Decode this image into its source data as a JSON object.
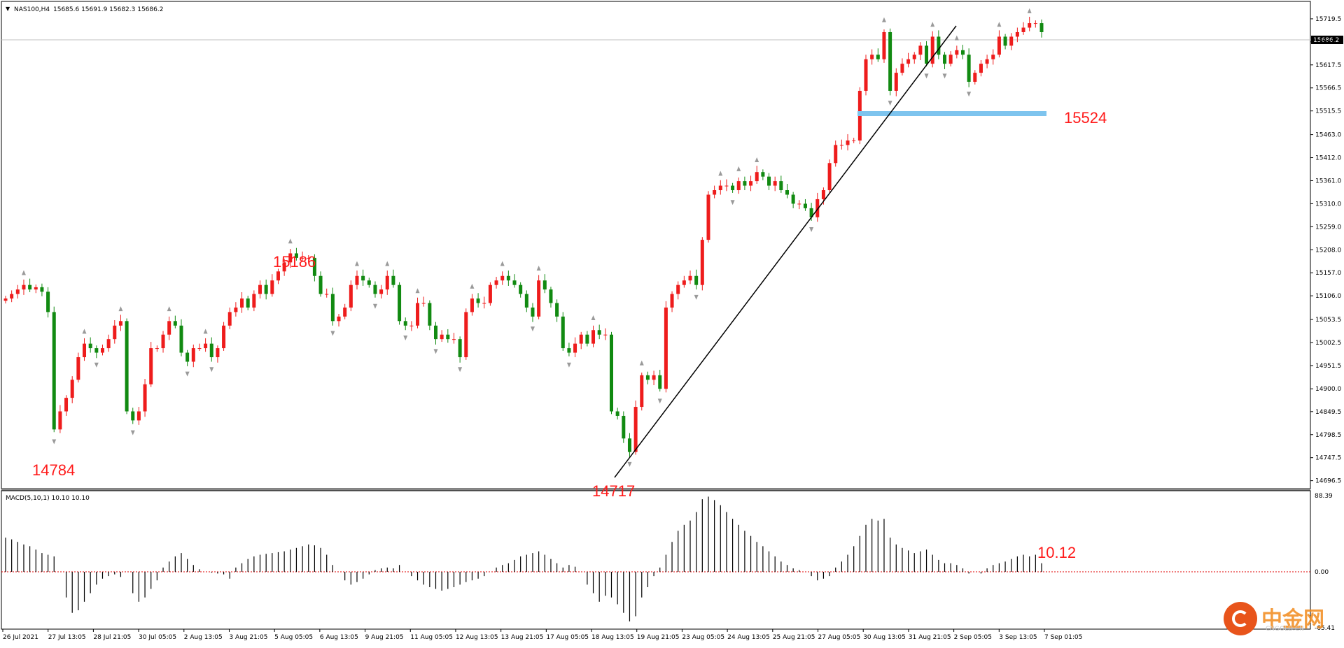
{
  "header": {
    "symbol": "NAS100,H4",
    "ohlc": "15685.6 15691.9 15682.3 15686.2"
  },
  "current_price_label": "15686.2",
  "annotations": {
    "low_left": "14784",
    "high_mid": "15186",
    "low_mid": "14717",
    "support": "15524",
    "macd_value": "10.12"
  },
  "macd": {
    "title": "MACD(5,10,1) 10.10 10.10",
    "max_label": "88.39",
    "zero_label": "0.00",
    "min_label": "-65.41"
  },
  "colors": {
    "bull": "#ee1c1c",
    "bear": "#118a11",
    "support_line": "#7ec4ee",
    "annotation": "#ff1a1a",
    "trendline": "#000000",
    "fractal": "#9a9a9a"
  },
  "chart_data": {
    "type": "candlestick",
    "title": "NAS100,H4",
    "timeframe": "H4",
    "price_axis": {
      "ticks": [
        "15719.5",
        "15668.5",
        "15617.5",
        "15566.5",
        "15515.5",
        "15463.0",
        "15412.0",
        "15361.0",
        "15310.0",
        "15259.0",
        "15208.0",
        "15157.0",
        "15106.0",
        "15053.5",
        "15002.5",
        "14951.5",
        "14900.0",
        "14849.5",
        "14798.5",
        "14747.5",
        "14696.5"
      ],
      "range": [
        14682,
        15755
      ]
    },
    "time_axis": {
      "ticks": [
        "26 Jul 2021",
        "27 Jul 13:05",
        "28 Jul 21:05",
        "30 Jul 05:05",
        "2 Aug 13:05",
        "3 Aug 21:05",
        "5 Aug 05:05",
        "6 Aug 13:05",
        "9 Aug 21:05",
        "11 Aug 05:05",
        "12 Aug 13:05",
        "13 Aug 21:05",
        "17 Aug 05:05",
        "18 Aug 13:05",
        "19 Aug 21:05",
        "23 Aug 05:05",
        "24 Aug 13:05",
        "25 Aug 21:05",
        "27 Aug 05:05",
        "30 Aug 13:05",
        "31 Aug 21:05",
        "2 Sep 05:05",
        "3 Sep 13:05",
        "7 Sep 01:05"
      ]
    },
    "candle_closes": [
      15100,
      15110,
      15120,
      15130,
      15120,
      15125,
      15115,
      15070,
      14810,
      14850,
      14880,
      14920,
      14970,
      15000,
      14990,
      14980,
      14990,
      15010,
      15040,
      15050,
      14850,
      14830,
      14850,
      14910,
      14990,
      14990,
      15020,
      15050,
      15040,
      14980,
      14960,
      14990,
      14990,
      15000,
      14970,
      14990,
      15040,
      15070,
      15080,
      15100,
      15080,
      15110,
      15130,
      15110,
      15140,
      15160,
      15180,
      15200,
      15190,
      15190,
      15190,
      15150,
      15110,
      15110,
      15050,
      15060,
      15080,
      15130,
      15150,
      15140,
      15130,
      15110,
      15120,
      15150,
      15130,
      15050,
      15040,
      15040,
      15090,
      15090,
      15040,
      15010,
      15020,
      15010,
      15010,
      14970,
      15070,
      15100,
      15090,
      15090,
      15130,
      15140,
      15150,
      15140,
      15130,
      15110,
      15080,
      15060,
      15140,
      15120,
      15090,
      15060,
      14990,
      14980,
      15000,
      15020,
      15000,
      15030,
      15020,
      15020,
      14850,
      14840,
      14790,
      14760,
      14860,
      14930,
      14920,
      14930,
      14900,
      15080,
      15110,
      15130,
      15140,
      15150,
      15130,
      15230,
      15330,
      15340,
      15350,
      15350,
      15340,
      15360,
      15350,
      15360,
      15380,
      15370,
      15350,
      15360,
      15340,
      15330,
      15310,
      15310,
      15300,
      15280,
      15320,
      15340,
      15400,
      15440,
      15440,
      15450,
      15450,
      15560,
      15630,
      15640,
      15630,
      15690,
      15560,
      15600,
      15620,
      15630,
      15640,
      15660,
      15620,
      15680,
      15640,
      15620,
      15640,
      15650,
      15640,
      15580,
      15600,
      15620,
      15630,
      15640,
      15680,
      15660,
      15680,
      15690,
      15700,
      15710,
      15710,
      15690
    ],
    "levels": {
      "support": 15524,
      "annotated_low_1": 14784,
      "annotated_high": 15186,
      "annotated_low_2": 14717,
      "current_price": 15686.2
    },
    "trendline": {
      "from": {
        "index": 103,
        "price": 14717
      },
      "to": {
        "index": 163,
        "price": 15740
      }
    },
    "macd_histogram": [
      40,
      38,
      35,
      32,
      30,
      26,
      22,
      20,
      18,
      0,
      -30,
      -48,
      -45,
      -35,
      -25,
      -15,
      -8,
      -5,
      -3,
      -6,
      0,
      -25,
      -35,
      -30,
      -20,
      -10,
      5,
      12,
      18,
      22,
      15,
      8,
      3,
      0,
      -1,
      -2,
      -3,
      -8,
      5,
      10,
      15,
      18,
      20,
      21,
      22,
      23,
      24,
      26,
      28,
      30,
      32,
      31,
      28,
      20,
      8,
      0,
      -10,
      -15,
      -12,
      -8,
      -3,
      2,
      4,
      5,
      4,
      8,
      0,
      -5,
      -10,
      -15,
      -18,
      -20,
      -22,
      -20,
      -18,
      -15,
      -12,
      -10,
      -8,
      -5,
      0,
      5,
      8,
      10,
      14,
      18,
      20,
      22,
      24,
      20,
      15,
      10,
      5,
      8,
      6,
      0,
      -15,
      -25,
      -35,
      -28,
      -30,
      -38,
      -48,
      -58,
      -52,
      -30,
      -18,
      -5,
      5,
      20,
      35,
      48,
      55,
      60,
      70,
      85,
      88,
      84,
      78,
      70,
      62,
      55,
      48,
      42,
      35,
      30,
      24,
      18,
      12,
      8,
      4,
      2,
      0,
      -5,
      -10,
      -8,
      -5,
      5,
      12,
      20,
      30,
      42,
      55,
      62,
      60,
      62,
      40,
      32,
      28,
      25,
      22,
      24,
      26,
      20,
      14,
      10,
      10,
      8,
      4,
      -2,
      0,
      -2,
      4,
      8,
      10,
      12,
      15,
      18,
      20,
      18,
      20,
      10
    ]
  }
}
